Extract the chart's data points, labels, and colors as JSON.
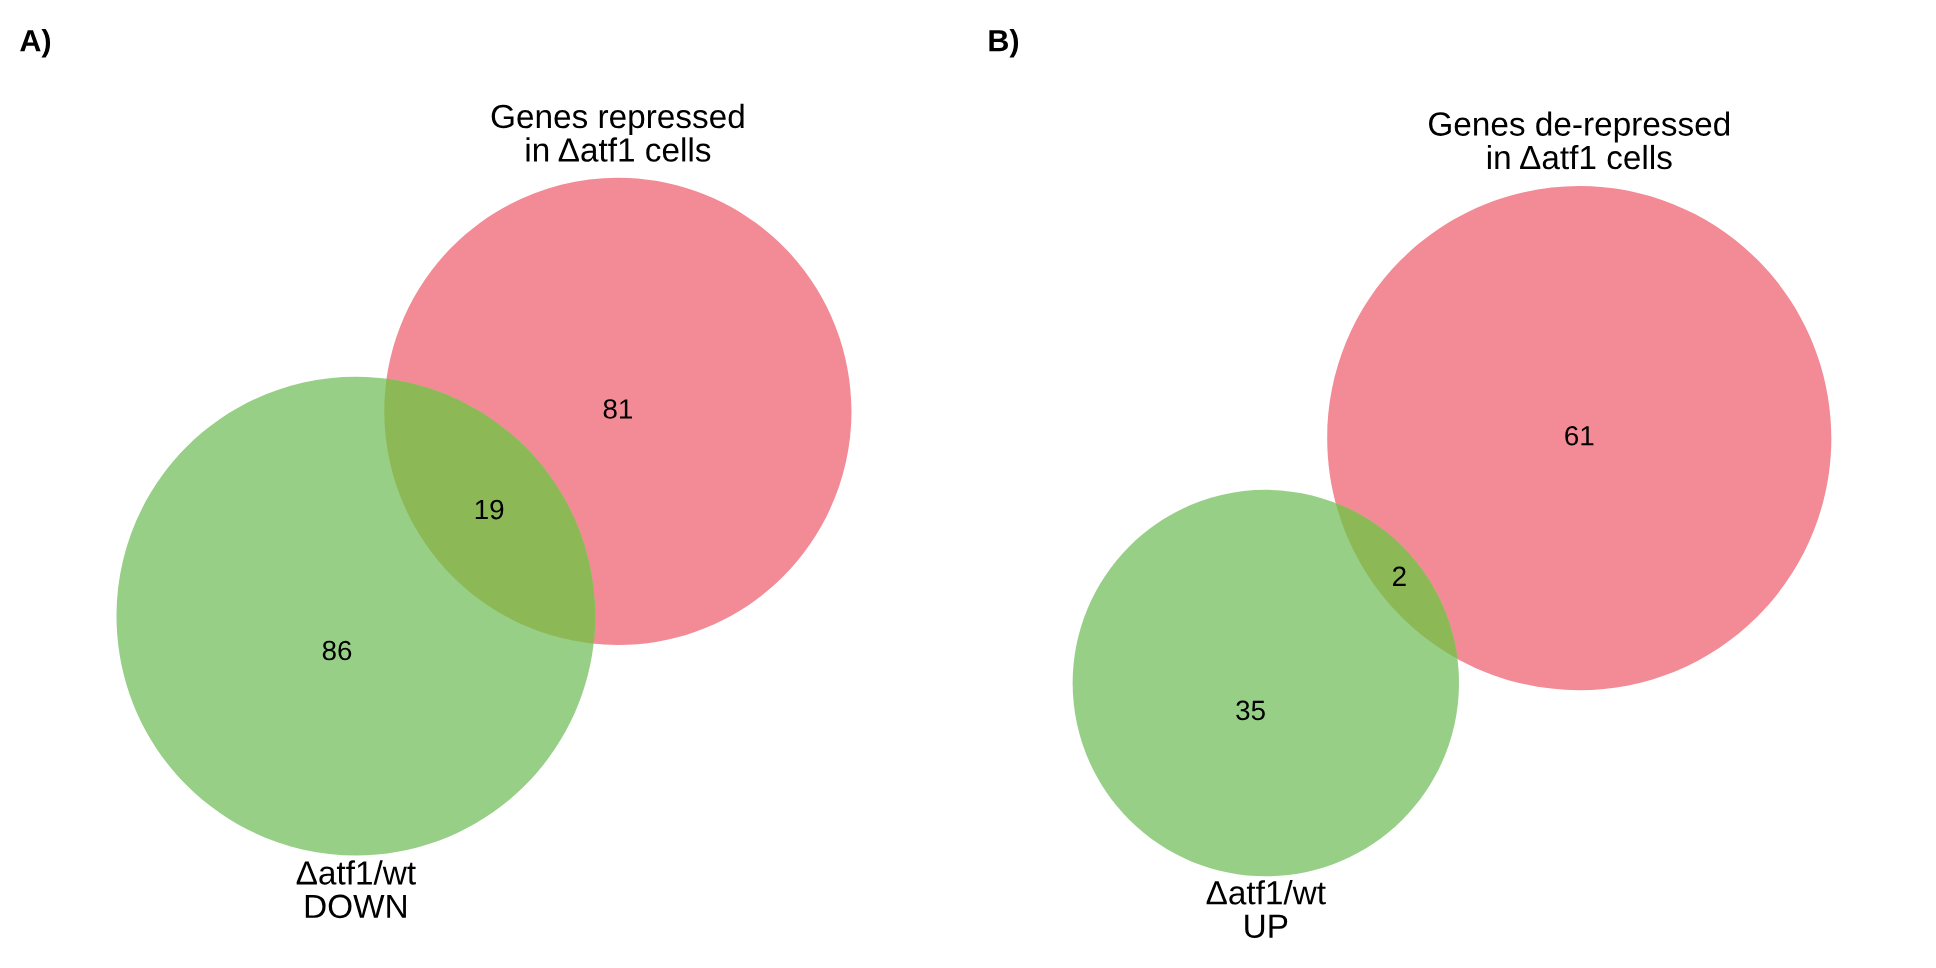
{
  "chart_data": [
    {
      "type": "other",
      "title": "A)",
      "categories": [
        null,
        null,
        null
      ],
      "values": [
        81,
        19,
        86
      ],
      "colors": [
        "#f28b95",
        "#8db856",
        "#97cf87"
      ],
      "data_labels": true,
      "annotations": [
        "Genes repressed\nin Δatf1 cells",
        "Δatf1/wt\nDOWN"
      ]
    },
    {
      "type": "other",
      "title": "B)",
      "categories": [
        null,
        null,
        null
      ],
      "values": [
        61,
        2,
        35
      ],
      "colors": [
        "#f28b95",
        "#8db856",
        "#97cf87"
      ],
      "data_labels": true,
      "annotations": [
        "Genes de-repressed\nin Δatf1 cells",
        "Δatf1/wt\nUP"
      ]
    }
  ]
}
